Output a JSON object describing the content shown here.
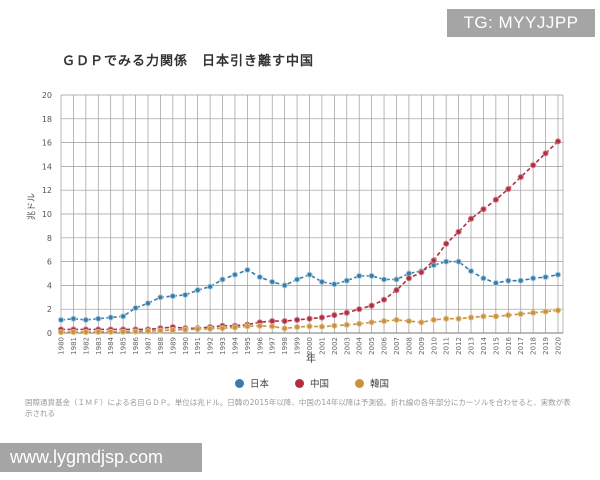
{
  "watermarks": {
    "top_right": "TG: MYYJJPP",
    "bottom_left": "www.lygmdjsp.com"
  },
  "chart_data": {
    "type": "line",
    "title": "ＧＤＰでみる力関係　日本引き離す中国",
    "xlabel": "年",
    "ylabel": "兆ドル",
    "ylim": [
      0,
      20
    ],
    "ytick_step": 2,
    "grid": true,
    "legend_position": "bottom",
    "x": [
      1980,
      1981,
      1982,
      1983,
      1984,
      1985,
      1986,
      1987,
      1988,
      1989,
      1990,
      1991,
      1992,
      1993,
      1994,
      1995,
      1996,
      1997,
      1998,
      1999,
      2000,
      2001,
      2002,
      2003,
      2004,
      2005,
      2006,
      2007,
      2008,
      2009,
      2010,
      2011,
      2012,
      2013,
      2014,
      2015,
      2016,
      2017,
      2018,
      2019,
      2020
    ],
    "series": [
      {
        "name": "日本",
        "color": "#3a7ca8",
        "halo": "#a8cfe3",
        "values": [
          1.1,
          1.2,
          1.1,
          1.2,
          1.3,
          1.4,
          2.1,
          2.5,
          3.0,
          3.1,
          3.2,
          3.6,
          3.9,
          4.5,
          4.9,
          5.3,
          4.7,
          4.3,
          4.0,
          4.5,
          4.9,
          4.3,
          4.1,
          4.4,
          4.8,
          4.8,
          4.5,
          4.5,
          5.0,
          5.2,
          5.7,
          6.0,
          6.0,
          5.2,
          4.6,
          4.2,
          4.4,
          4.4,
          4.6,
          4.7,
          4.9
        ]
      },
      {
        "name": "中国",
        "color": "#ad2f41",
        "halo": "#d4808d",
        "values": [
          0.3,
          0.3,
          0.3,
          0.3,
          0.3,
          0.3,
          0.3,
          0.3,
          0.4,
          0.5,
          0.4,
          0.4,
          0.5,
          0.6,
          0.6,
          0.7,
          0.9,
          1.0,
          1.0,
          1.1,
          1.2,
          1.3,
          1.5,
          1.7,
          2.0,
          2.3,
          2.8,
          3.6,
          4.6,
          5.1,
          6.1,
          7.5,
          8.5,
          9.6,
          10.4,
          11.2,
          12.1,
          13.1,
          14.1,
          15.1,
          16.1
        ]
      },
      {
        "name": "韓国",
        "color": "#c8923f",
        "halo": "#e3c28e",
        "values": [
          0.07,
          0.08,
          0.08,
          0.09,
          0.1,
          0.1,
          0.12,
          0.15,
          0.2,
          0.25,
          0.28,
          0.33,
          0.36,
          0.4,
          0.46,
          0.56,
          0.6,
          0.56,
          0.38,
          0.5,
          0.56,
          0.53,
          0.61,
          0.68,
          0.77,
          0.9,
          1.0,
          1.1,
          1.0,
          0.9,
          1.1,
          1.2,
          1.2,
          1.3,
          1.4,
          1.4,
          1.5,
          1.6,
          1.7,
          1.8,
          1.9
        ]
      }
    ],
    "caption": "国際通貨基金（ＩＭＦ）による名目ＧＤＰ。単位は兆ドル。日韓の2015年以降、中国の14年以降は予測値。折れ線の各年部分にカーソルを合わせると、実数が表示される"
  }
}
